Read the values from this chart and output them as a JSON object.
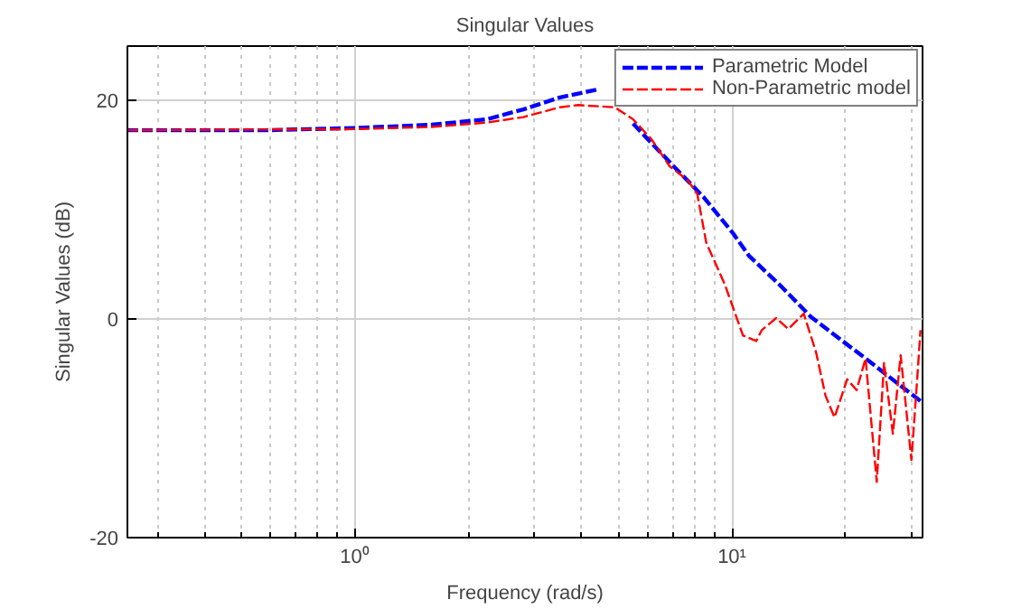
{
  "chart_data": {
    "type": "line",
    "title": "Singular Values",
    "xlabel": "Frequency (rad/s)",
    "ylabel": "Singular Values (dB)",
    "log": "x",
    "xlim": [
      0.25,
      32
    ],
    "ylim": [
      -20,
      25
    ],
    "xticks": [
      {
        "value": 0.3,
        "label": null
      },
      {
        "value": 0.4,
        "label": null
      },
      {
        "value": 0.5,
        "label": null
      },
      {
        "value": 0.6,
        "label": null
      },
      {
        "value": 0.7,
        "label": null
      },
      {
        "value": 0.8,
        "label": null
      },
      {
        "value": 0.9,
        "label": null
      },
      {
        "value": 1,
        "label": "10⁰"
      },
      {
        "value": 2,
        "label": null
      },
      {
        "value": 3,
        "label": null
      },
      {
        "value": 4,
        "label": null
      },
      {
        "value": 5,
        "label": null
      },
      {
        "value": 6,
        "label": null
      },
      {
        "value": 7,
        "label": null
      },
      {
        "value": 8,
        "label": null
      },
      {
        "value": 9,
        "label": null
      },
      {
        "value": 10,
        "label": "10¹"
      },
      {
        "value": 20,
        "label": null
      },
      {
        "value": 30,
        "label": null
      }
    ],
    "yticks": [
      -20,
      0,
      20
    ],
    "grid": true,
    "legend": "top right",
    "line_style": "dashed",
    "marker": "none",
    "series": [
      {
        "name": "Parametric Model",
        "color": "#0000ff",
        "x": [
          0.25,
          0.585,
          1,
          1.6,
          2.24,
          2.8,
          3.5,
          4.37,
          5.17,
          5.47,
          7.05,
          8.4,
          10.1,
          11.1,
          13.6,
          16.2,
          22.6,
          31.6
        ],
        "values": [
          17.3,
          17.3,
          17.5,
          17.8,
          18.3,
          19.2,
          20.3,
          21.0,
          null,
          17.9,
          13.9,
          11.2,
          7.8,
          5.8,
          2.9,
          0.2,
          -3.6,
          -7.5
        ]
      },
      {
        "name": "Non-Parametric model",
        "color": "#ff0000",
        "x": [
          0.25,
          1,
          1.6,
          2.24,
          2.8,
          3.5,
          3.91,
          4.89,
          5.47,
          6.11,
          6.84,
          7.64,
          8.09,
          8.55,
          9.57,
          10.7,
          11.6,
          12.0,
          13.1,
          14.1,
          15.5,
          16.7,
          17.7,
          18.7,
          20.2,
          21.4,
          22.6,
          24.2,
          25.3,
          26.7,
          28.0,
          29.9,
          30.9,
          31.6
        ],
        "values": [
          17.3,
          17.4,
          17.6,
          18.0,
          18.5,
          19.4,
          19.6,
          19.4,
          18.3,
          16.5,
          14,
          12.7,
          11.5,
          7,
          3.2,
          -1.5,
          -2.0,
          -1.0,
          0.1,
          -0.9,
          0.5,
          -3,
          -7,
          -9,
          -5.5,
          -6.5,
          -3.6,
          -14.9,
          -4,
          -10.5,
          -3.3,
          -12.9,
          -6,
          -1
        ]
      }
    ]
  }
}
